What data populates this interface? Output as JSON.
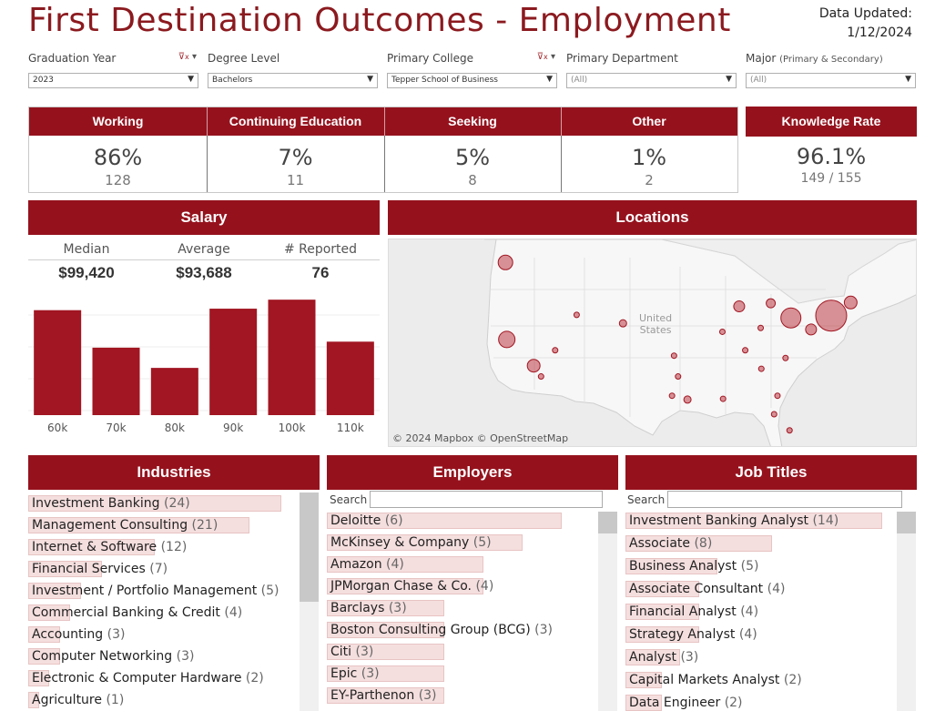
{
  "title": "First Destination Outcomes - Employment",
  "updated": {
    "label": "Data Updated:",
    "date": "1/12/2024"
  },
  "filters": [
    {
      "label": "Graduation Year",
      "value": "2023",
      "has_filter_icon": true
    },
    {
      "label": "Degree Level",
      "value": "Bachelors",
      "has_filter_icon": false
    },
    {
      "label": "Primary College",
      "value": "Tepper School of Business",
      "has_filter_icon": true
    },
    {
      "label": "Primary Department",
      "value": "(All)",
      "has_filter_icon": false
    },
    {
      "label": "Major",
      "sublabel": "(Primary & Secondary)",
      "value": "(All)",
      "has_filter_icon": false
    }
  ],
  "kpis": [
    {
      "label": "Working",
      "pct": "86%",
      "count": "128"
    },
    {
      "label": "Continuing Education",
      "pct": "7%",
      "count": "11"
    },
    {
      "label": "Seeking",
      "pct": "5%",
      "count": "8"
    },
    {
      "label": "Other",
      "pct": "1%",
      "count": "2"
    }
  ],
  "knowledge": {
    "label": "Knowledge Rate",
    "pct": "96.1%",
    "count": "149 / 155"
  },
  "salary": {
    "title": "Salary",
    "median_label": "Median",
    "median": "$99,420",
    "average_label": "Average",
    "average": "$93,688",
    "reported_label": "# Reported",
    "reported": "76"
  },
  "chart_data": {
    "type": "bar",
    "categories": [
      "60k",
      "70k",
      "80k",
      "90k",
      "100k",
      "110k"
    ],
    "values": [
      14,
      9,
      6.3,
      14.2,
      15.4,
      9.8
    ],
    "ylim": [
      0,
      17
    ],
    "grid": true,
    "color": "#a11622"
  },
  "locations": {
    "title": "Locations",
    "map_label_1": "United",
    "map_label_2": "States",
    "credit": "© 2024 Mapbox © OpenStreetMap",
    "points": [
      {
        "lon": -122.5,
        "lat": 47.6,
        "size": 8
      },
      {
        "lon": -122.3,
        "lat": 37.6,
        "size": 9
      },
      {
        "lon": -118.3,
        "lat": 34.2,
        "size": 7
      },
      {
        "lon": -117.2,
        "lat": 32.8,
        "size": 3
      },
      {
        "lon": -115.1,
        "lat": 36.2,
        "size": 3
      },
      {
        "lon": -111.9,
        "lat": 40.8,
        "size": 3
      },
      {
        "lon": -105.0,
        "lat": 39.7,
        "size": 4
      },
      {
        "lon": -97.7,
        "lat": 30.3,
        "size": 3
      },
      {
        "lon": -96.8,
        "lat": 32.8,
        "size": 3
      },
      {
        "lon": -95.4,
        "lat": 29.8,
        "size": 4
      },
      {
        "lon": -97.4,
        "lat": 35.5,
        "size": 3
      },
      {
        "lon": -90.2,
        "lat": 38.6,
        "size": 3
      },
      {
        "lon": -87.7,
        "lat": 41.9,
        "size": 6
      },
      {
        "lon": -83.0,
        "lat": 42.3,
        "size": 5
      },
      {
        "lon": -84.5,
        "lat": 39.1,
        "size": 3
      },
      {
        "lon": -84.4,
        "lat": 33.8,
        "size": 3
      },
      {
        "lon": -80.0,
        "lat": 40.4,
        "size": 11
      },
      {
        "lon": -77.0,
        "lat": 38.9,
        "size": 6
      },
      {
        "lon": -80.8,
        "lat": 35.2,
        "size": 3
      },
      {
        "lon": -82.5,
        "lat": 27.9,
        "size": 3
      },
      {
        "lon": -80.2,
        "lat": 25.8,
        "size": 3
      },
      {
        "lon": -82.0,
        "lat": 30.3,
        "size": 3
      },
      {
        "lon": -74.0,
        "lat": 40.7,
        "size": 17
      },
      {
        "lon": -71.1,
        "lat": 42.4,
        "size": 7
      },
      {
        "lon": -86.8,
        "lat": 36.2,
        "size": 3
      },
      {
        "lon": -90.1,
        "lat": 29.9,
        "size": 3
      }
    ]
  },
  "industries": {
    "title": "Industries",
    "items": [
      {
        "name": "Investment Banking",
        "count": "(24)",
        "value": 24
      },
      {
        "name": "Management Consulting",
        "count": "(21)",
        "value": 21
      },
      {
        "name": "Internet & Software",
        "count": "(12)",
        "value": 12
      },
      {
        "name": "Financial Services",
        "count": "(7)",
        "value": 7
      },
      {
        "name": "Investment / Portfolio Management",
        "count": "(5)",
        "value": 5
      },
      {
        "name": "Commercial Banking & Credit",
        "count": "(4)",
        "value": 4
      },
      {
        "name": "Accounting",
        "count": "(3)",
        "value": 3
      },
      {
        "name": "Computer Networking",
        "count": "(3)",
        "value": 3
      },
      {
        "name": "Electronic & Computer Hardware",
        "count": "(2)",
        "value": 2
      },
      {
        "name": "Agriculture",
        "count": "(1)",
        "value": 1
      }
    ]
  },
  "employers": {
    "title": "Employers",
    "search_label": "Search",
    "items": [
      {
        "name": "Deloitte",
        "count": "(6)",
        "value": 6
      },
      {
        "name": "McKinsey & Company",
        "count": "(5)",
        "value": 5
      },
      {
        "name": "Amazon",
        "count": "(4)",
        "value": 4
      },
      {
        "name": "JPMorgan Chase & Co.",
        "count": "(4)",
        "value": 4
      },
      {
        "name": "Barclays",
        "count": "(3)",
        "value": 3
      },
      {
        "name": "Boston Consulting Group (BCG)",
        "count": "(3)",
        "value": 3
      },
      {
        "name": "Citi",
        "count": "(3)",
        "value": 3
      },
      {
        "name": "Epic",
        "count": "(3)",
        "value": 3
      },
      {
        "name": "EY-Parthenon",
        "count": "(3)",
        "value": 3
      }
    ]
  },
  "job_titles": {
    "title": "Job Titles",
    "search_label": "Search",
    "items": [
      {
        "name": "Investment Banking Analyst",
        "count": "(14)",
        "value": 14
      },
      {
        "name": "Associate",
        "count": "(8)",
        "value": 8
      },
      {
        "name": "Business Analyst",
        "count": "(5)",
        "value": 5
      },
      {
        "name": "Associate Consultant",
        "count": "(4)",
        "value": 4
      },
      {
        "name": "Financial Analyst",
        "count": "(4)",
        "value": 4
      },
      {
        "name": "Strategy Analyst",
        "count": "(4)",
        "value": 4
      },
      {
        "name": "Analyst",
        "count": "(3)",
        "value": 3
      },
      {
        "name": "Capital Markets Analyst",
        "count": "(2)",
        "value": 2
      },
      {
        "name": "Data Engineer",
        "count": "(2)",
        "value": 2
      }
    ]
  }
}
